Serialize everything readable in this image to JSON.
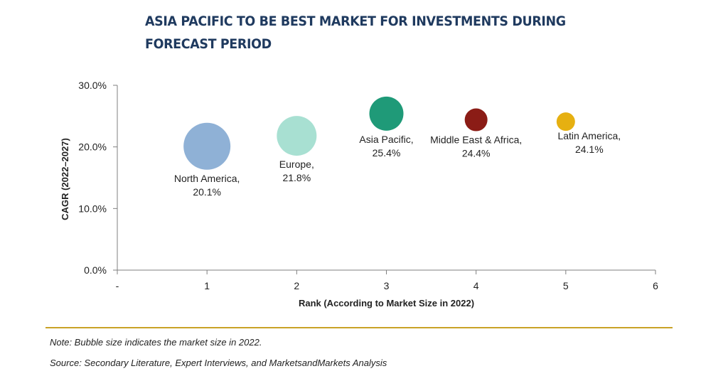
{
  "title": "ASIA PACIFIC TO BE BEST MARKET FOR INVESTMENTS DURING FORECAST PERIOD",
  "note": "Note: Bubble size indicates the market size in 2022.",
  "source": "Source: Secondary Literature, Expert Interviews, and MarketsandMarkets Analysis",
  "chart_data": {
    "type": "scatter",
    "title": "ASIA PACIFIC TO BE BEST MARKET FOR INVESTMENTS DURING FORECAST PERIOD",
    "xlabel": "Rank (According to Market Size in 2022)",
    "ylabel": "CAGR (2022–2027)",
    "xlim": [
      0,
      6
    ],
    "ylim": [
      0,
      30
    ],
    "x_ticks": [
      "-",
      "1",
      "2",
      "3",
      "4",
      "5",
      "6"
    ],
    "y_ticks": [
      "0.0%",
      "10.0%",
      "20.0%",
      "30.0%"
    ],
    "grid": false,
    "points": [
      {
        "name": "North America",
        "x": 1,
        "y": 20.1,
        "value_label": "20.1%",
        "size": 5,
        "color": "#8fb1d6",
        "label_pos": "below"
      },
      {
        "name": "Europe",
        "x": 2,
        "y": 21.8,
        "value_label": "21.8%",
        "size": 4,
        "color": "#a8e0d2",
        "label_pos": "below"
      },
      {
        "name": "Asia Pacific",
        "x": 3,
        "y": 25.4,
        "value_label": "25.4%",
        "size": 3,
        "color": "#1f9a78",
        "label_pos": "below"
      },
      {
        "name": "Middle East & Africa",
        "x": 4,
        "y": 24.4,
        "value_label": "24.4%",
        "size": 2,
        "color": "#8b1c16",
        "label_pos": "below"
      },
      {
        "name": "Latin America",
        "x": 5,
        "y": 24.1,
        "value_label": "24.1%",
        "size": 1,
        "color": "#e6b011",
        "label_pos": "below-right"
      }
    ]
  }
}
